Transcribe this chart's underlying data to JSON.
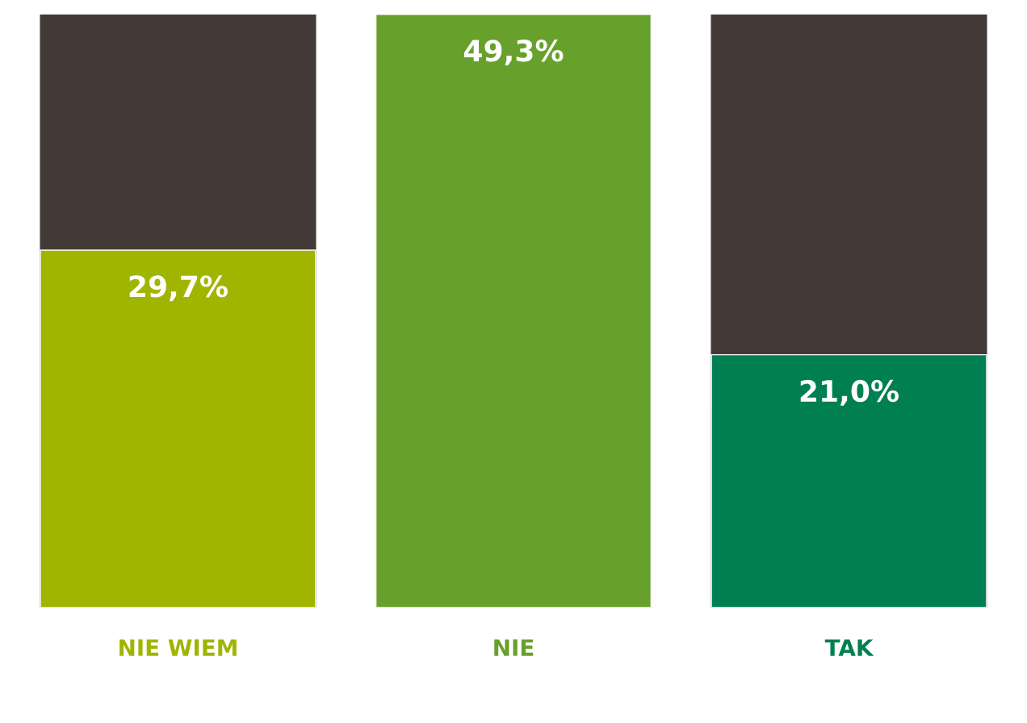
{
  "chart_data": {
    "type": "bar",
    "categories": [
      "NIE WIEM",
      "NIE",
      "TAK"
    ],
    "values": [
      29.7,
      49.3,
      21.0
    ],
    "colors": [
      "#a0b500",
      "#68a02c",
      "#008052"
    ],
    "value_labels": [
      "29,7%",
      "49,3%",
      "21,0%"
    ],
    "tick_labels": "x"
  }
}
